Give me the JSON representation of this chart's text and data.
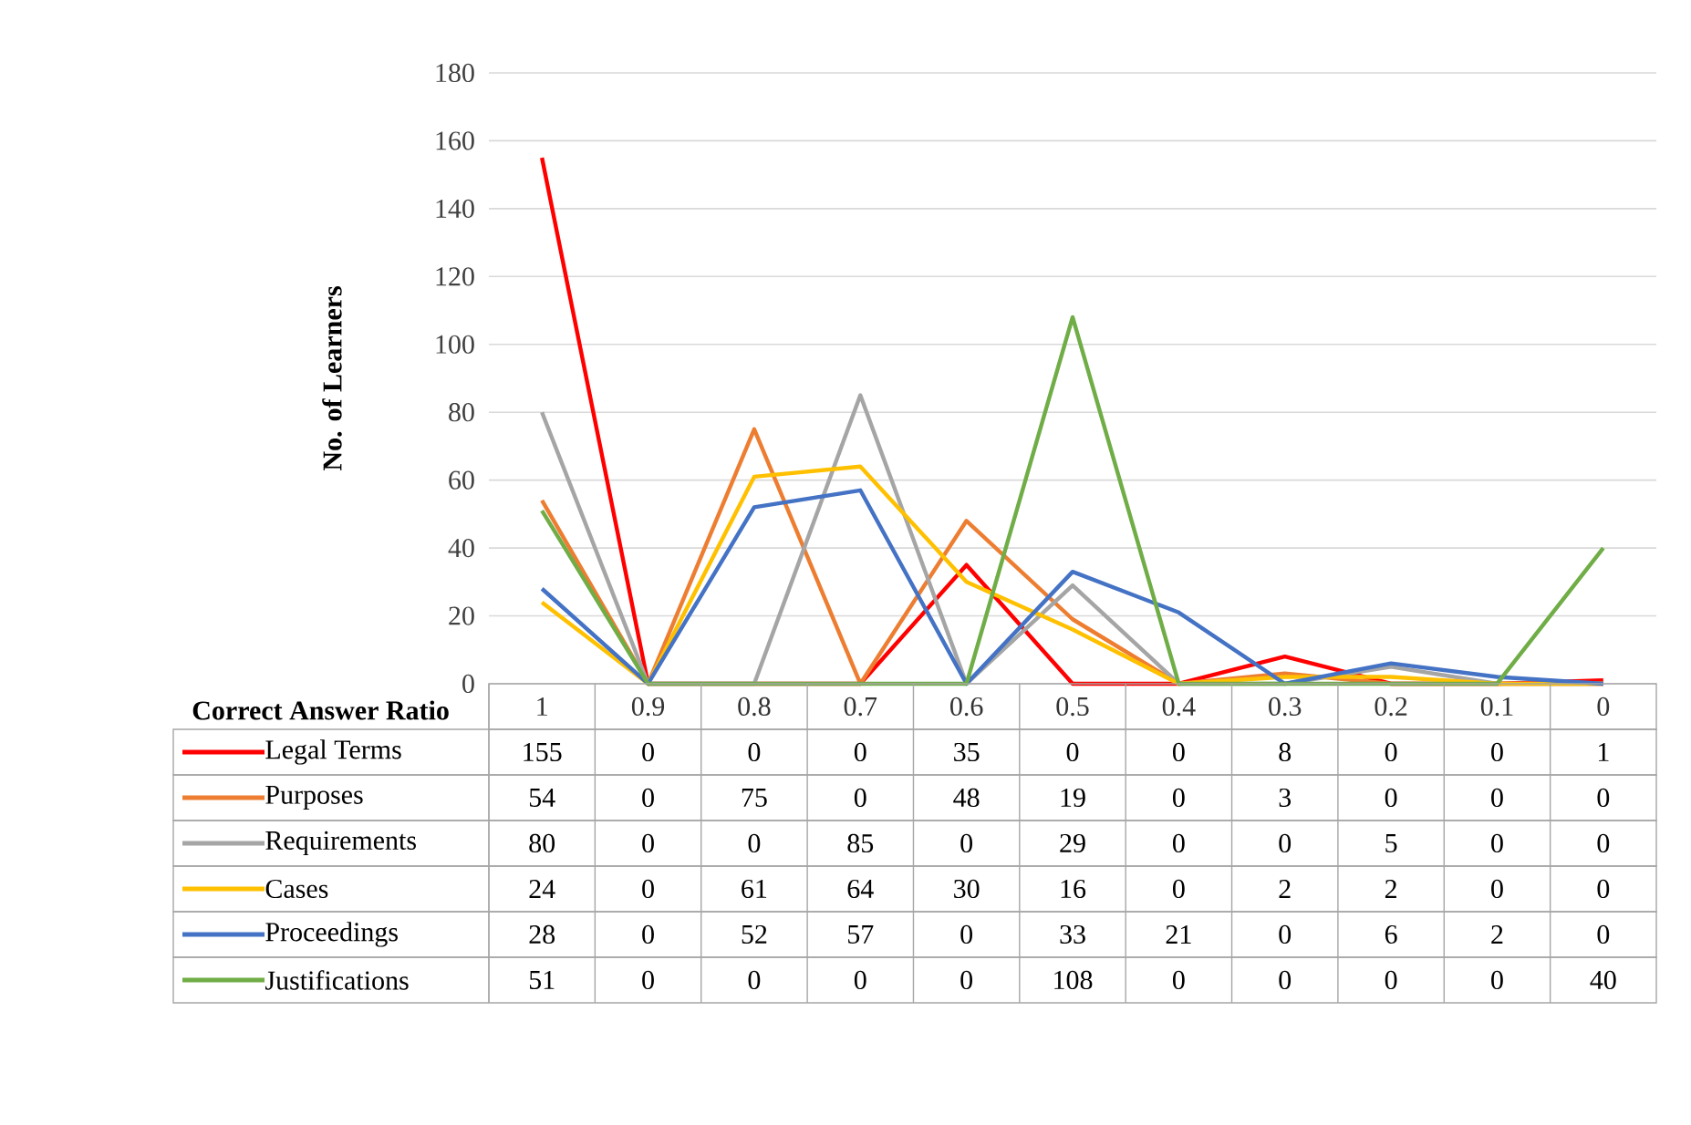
{
  "chart_data": {
    "type": "line",
    "xlabel": "Correct Answer Ratio",
    "ylabel": "No. of Learners",
    "categories": [
      "1",
      "0.9",
      "0.8",
      "0.7",
      "0.6",
      "0.5",
      "0.4",
      "0.3",
      "0.2",
      "0.1",
      "0"
    ],
    "series": [
      {
        "name": "Legal Terms",
        "color": "#ff0000",
        "values": [
          155,
          0,
          0,
          0,
          35,
          0,
          0,
          8,
          0,
          0,
          1
        ]
      },
      {
        "name": "Purposes",
        "color": "#ed7d31",
        "values": [
          54,
          0,
          75,
          0,
          48,
          19,
          0,
          3,
          0,
          0,
          0
        ]
      },
      {
        "name": "Requirements",
        "color": "#a5a5a5",
        "values": [
          80,
          0,
          0,
          85,
          0,
          29,
          0,
          0,
          5,
          0,
          0
        ]
      },
      {
        "name": "Cases",
        "color": "#ffc000",
        "values": [
          24,
          0,
          61,
          64,
          30,
          16,
          0,
          2,
          2,
          0,
          0
        ]
      },
      {
        "name": "Proceedings",
        "color": "#4472c4",
        "values": [
          28,
          0,
          52,
          57,
          0,
          33,
          21,
          0,
          6,
          2,
          0
        ]
      },
      {
        "name": "Justifications",
        "color": "#70ad47",
        "values": [
          51,
          0,
          0,
          0,
          0,
          108,
          0,
          0,
          0,
          0,
          40
        ]
      }
    ],
    "ylim": [
      0,
      180
    ],
    "yticks": [
      0,
      20,
      40,
      60,
      80,
      100,
      120,
      140,
      160,
      180
    ],
    "grid": "y",
    "legend": "bottom",
    "data_labels": true,
    "marker": "none",
    "line_style": "solid"
  }
}
